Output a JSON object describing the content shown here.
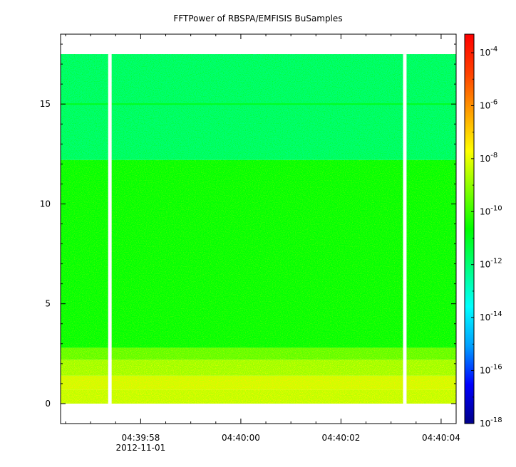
{
  "chart_data": {
    "type": "heatmap",
    "title": "FFTPower of RBSPA/EMFISIS  BuSamples",
    "xlabel": "",
    "ylabel": "",
    "x_date": "2012-11-01",
    "x_range_seconds": [
      16796.4,
      16804.3
    ],
    "x_ticks": [
      {
        "value": 16798,
        "label": "04:39:58"
      },
      {
        "value": 16800,
        "label": "04:40:00"
      },
      {
        "value": 16802,
        "label": "04:40:02"
      },
      {
        "value": 16804,
        "label": "04:40:04"
      }
    ],
    "x_minor_step": 0.5,
    "ylim": [
      -1,
      18.5
    ],
    "y_ticks": [
      0,
      5,
      10,
      15
    ],
    "data_y_range": [
      0,
      17.5
    ],
    "gaps_seconds": [
      [
        16797.35,
        16797.42
      ],
      [
        16803.24,
        16803.31
      ]
    ],
    "colorbar": {
      "scale": "log",
      "range_exp": [
        -18,
        -3.3
      ],
      "tick_exponents": [
        -18,
        -16,
        -14,
        -12,
        -10,
        -8,
        -6,
        -4
      ],
      "colormap": [
        "#000088",
        "#0000ff",
        "#00a0ff",
        "#00ffff",
        "#00ff80",
        "#00ff00",
        "#80ff00",
        "#ffff00",
        "#ffa000",
        "#ff4000",
        "#ff0000"
      ]
    },
    "bands": [
      {
        "y": [
          0.0,
          0.7
        ],
        "log_power": -8.5
      },
      {
        "y": [
          0.7,
          1.4
        ],
        "log_power": -8.3
      },
      {
        "y": [
          1.4,
          2.2
        ],
        "log_power": -8.9
      },
      {
        "y": [
          2.2,
          2.8
        ],
        "log_power": -9.6
      },
      {
        "y": [
          2.8,
          12.2
        ],
        "log_power": -10.7
      },
      {
        "y": [
          12.2,
          17.5
        ],
        "log_power": -12.0
      }
    ],
    "lines": [
      {
        "y": 15.0,
        "log_power": -11.0
      }
    ]
  }
}
